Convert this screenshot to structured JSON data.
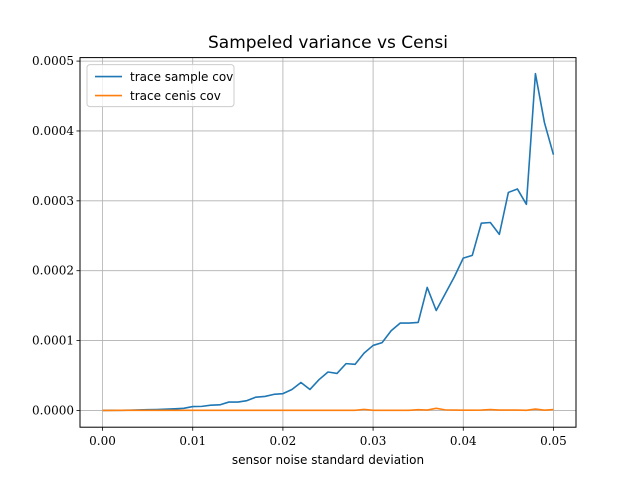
{
  "chart_data": {
    "type": "line",
    "title": "Sampeled variance vs Censi",
    "xlabel": "sensor noise standard deviation",
    "ylabel": "",
    "xlim": [
      -0.0025,
      0.0525
    ],
    "ylim": [
      -2.4e-05,
      0.000505
    ],
    "x_ticks": [
      0.0,
      0.01,
      0.02,
      0.03,
      0.04,
      0.05
    ],
    "x_tick_labels": [
      "0.00",
      "0.01",
      "0.02",
      "0.03",
      "0.04",
      "0.05"
    ],
    "y_ticks": [
      0.0,
      0.0001,
      0.0002,
      0.0003,
      0.0004,
      0.0005
    ],
    "y_tick_labels": [
      "0.0000",
      "0.0001",
      "0.0002",
      "0.0003",
      "0.0004",
      "0.0005"
    ],
    "grid": true,
    "legend_position": "upper-left",
    "x": [
      0.0,
      0.001,
      0.002,
      0.003,
      0.004,
      0.005,
      0.006,
      0.007,
      0.008,
      0.009,
      0.01,
      0.011,
      0.012,
      0.013,
      0.014,
      0.015,
      0.016,
      0.017,
      0.018,
      0.019,
      0.02,
      0.021,
      0.022,
      0.023,
      0.024,
      0.025,
      0.026,
      0.027,
      0.028,
      0.029,
      0.03,
      0.031,
      0.032,
      0.033,
      0.034,
      0.035,
      0.036,
      0.037,
      0.038,
      0.039,
      0.04,
      0.041,
      0.042,
      0.043,
      0.044,
      0.045,
      0.046,
      0.047,
      0.048,
      0.049,
      0.05
    ],
    "series": [
      {
        "name": "trace sample cov",
        "color": "#1f77b4",
        "values": [
          0.0,
          1e-07,
          2e-07,
          4e-07,
          7e-07,
          1e-06,
          1.3e-06,
          1.8e-06,
          2.3e-06,
          3e-06,
          5.5e-06,
          5.8e-06,
          7.5e-06,
          8e-06,
          1.2e-05,
          1.2e-05,
          1.4e-05,
          1.9e-05,
          2e-05,
          2.3e-05,
          2.4e-05,
          3e-05,
          4e-05,
          3e-05,
          4.4e-05,
          5.5e-05,
          5.3e-05,
          6.7e-05,
          6.6e-05,
          8.2e-05,
          9.3e-05,
          9.7e-05,
          0.000114,
          0.000125,
          0.000125,
          0.000126,
          0.000176,
          0.000143,
          0.000167,
          0.000191,
          0.000218,
          0.000222,
          0.000268,
          0.000269,
          0.000252,
          0.000312,
          0.000317,
          0.000295,
          0.000482,
          0.000412,
          0.000366
        ]
      },
      {
        "name": "trace cenis cov",
        "color": "#ff7f0e",
        "values": [
          0.0,
          0.0,
          1e-07,
          1e-07,
          1e-07,
          1e-07,
          1e-07,
          1e-07,
          1e-07,
          1e-07,
          1e-07,
          1e-07,
          1e-07,
          1e-07,
          1e-07,
          1e-07,
          1e-07,
          1e-07,
          1e-07,
          1e-07,
          2e-07,
          2e-07,
          2e-07,
          2e-07,
          2e-07,
          2e-07,
          2e-07,
          2e-07,
          2e-07,
          1.5e-06,
          2e-07,
          2e-07,
          2e-07,
          2e-07,
          2e-07,
          1e-06,
          5e-07,
          3e-06,
          8e-07,
          5e-07,
          3e-07,
          3e-07,
          5e-07,
          1.3e-06,
          5e-07,
          5e-07,
          5e-07,
          2e-07,
          2e-06,
          4e-07,
          1.2e-06
        ]
      }
    ]
  }
}
